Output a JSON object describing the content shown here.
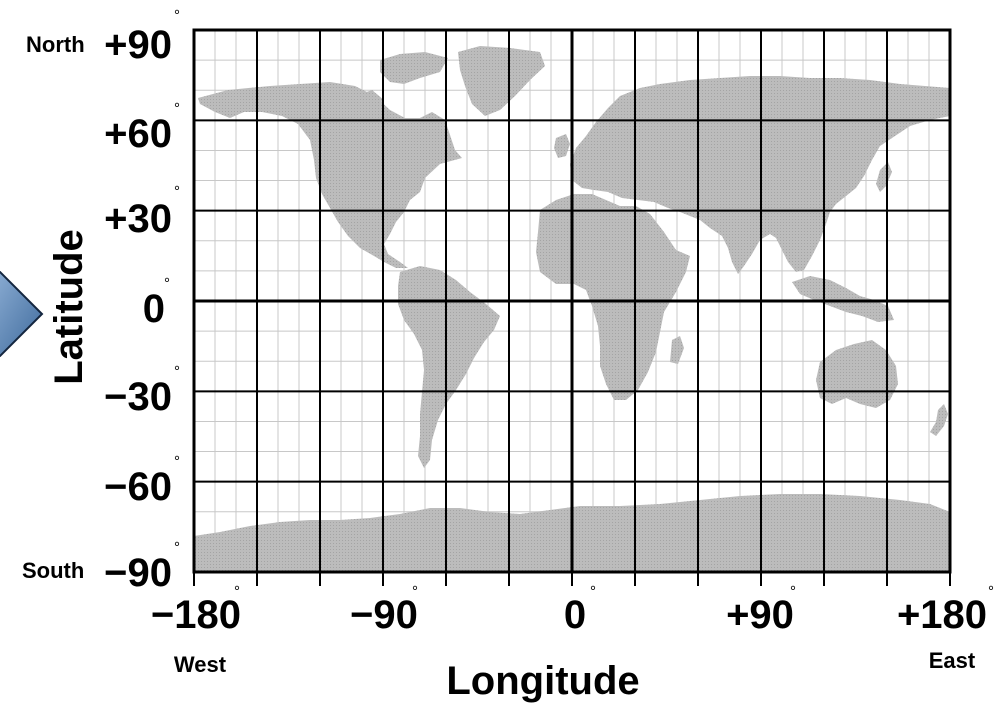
{
  "map": {
    "lat_axis": {
      "title": "Latitude",
      "ticks": [
        "+90",
        "+60",
        "+30",
        "0",
        "−30",
        "−60",
        "−90"
      ],
      "degree_symbol": "°",
      "north_label": "North",
      "south_label": "South"
    },
    "lon_axis": {
      "title": "Longitude",
      "ticks": [
        "−180",
        "−90",
        "0",
        "+90",
        "+180"
      ],
      "degree_symbol": "°",
      "west_label": "West",
      "east_label": "East"
    },
    "colors": {
      "land": "#bcbcbc",
      "ocean": "#ffffff",
      "major_grid": "#000000",
      "minor_grid": "#c8c8c8",
      "nav_arrow": "#5b83b0"
    },
    "extent": {
      "lon": [
        -180,
        180
      ],
      "lat": [
        -90,
        90
      ]
    },
    "major_grid_step_deg": 30,
    "minor_grid_step_deg": 10,
    "nav_arrow_icon": "chevron-right-icon"
  }
}
